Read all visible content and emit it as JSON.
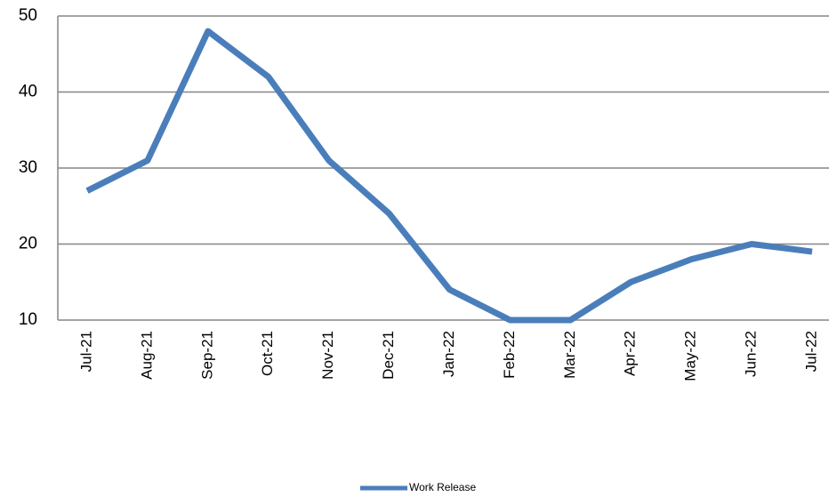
{
  "chart_data": {
    "type": "line",
    "categories": [
      "Jul-21",
      "Aug-21",
      "Sep-21",
      "Oct-21",
      "Nov-21",
      "Dec-21",
      "Jan-22",
      "Feb-22",
      "Mar-22",
      "Apr-22",
      "May-22",
      "Jun-22",
      "Jul-22"
    ],
    "series": [
      {
        "name": "Work Release",
        "color": "#4a7ebb",
        "values": [
          27,
          31,
          48,
          42,
          31,
          24,
          14,
          10,
          10,
          15,
          18,
          20,
          19
        ]
      }
    ],
    "ylim": [
      10,
      50
    ],
    "yticks": [
      10,
      20,
      30,
      40,
      50
    ],
    "grid": true,
    "legend": "bottom"
  }
}
